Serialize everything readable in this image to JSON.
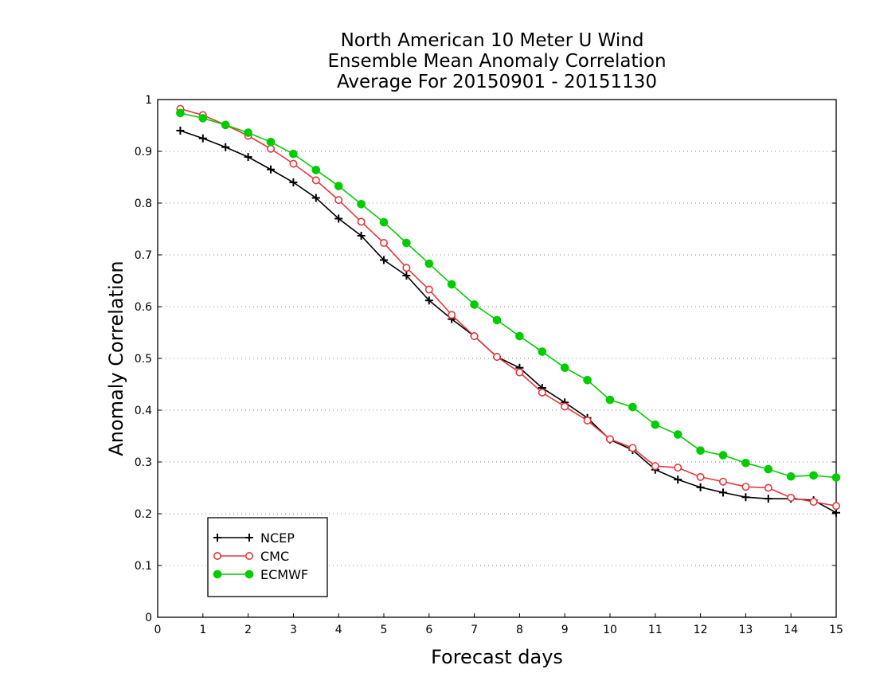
{
  "chart_data": {
    "type": "line",
    "title": [
      "North American 10 Meter U Wind",
      "Ensemble Mean Anomaly Correlation",
      "Average For 20150901 - 20151130"
    ],
    "xlabel": "Forecast days",
    "ylabel": "Anomaly Correlation",
    "xlim": [
      0,
      15
    ],
    "ylim": [
      0,
      1
    ],
    "xticks": [
      0,
      1,
      2,
      3,
      4,
      5,
      6,
      7,
      8,
      9,
      10,
      11,
      12,
      13,
      14,
      15
    ],
    "yticks": [
      0,
      0.1,
      0.2,
      0.3,
      0.4,
      0.5,
      0.6,
      0.7,
      0.8,
      0.9,
      1
    ],
    "ytick_labels": [
      "0",
      "0.1",
      "0.2",
      "0.3",
      "0.4",
      "0.5",
      "0.6",
      "0.7",
      "0.8",
      "0.9",
      "1"
    ],
    "grid": "horizontal dotted",
    "legend_position": "bottom-left",
    "x": [
      0.5,
      1,
      1.5,
      2,
      2.5,
      3,
      3.5,
      4,
      4.5,
      5,
      5.5,
      6,
      6.5,
      7,
      7.5,
      8,
      8.5,
      9,
      9.5,
      10,
      10.5,
      11,
      11.5,
      12,
      12.5,
      13,
      13.5,
      14,
      14.5,
      15
    ],
    "series": [
      {
        "name": "NCEP",
        "color": "#000000",
        "marker": "plus",
        "values": [
          0.94,
          0.925,
          0.908,
          0.889,
          0.865,
          0.84,
          0.81,
          0.77,
          0.737,
          0.69,
          0.66,
          0.612,
          0.576,
          0.543,
          0.503,
          0.482,
          0.443,
          0.415,
          0.385,
          0.343,
          0.323,
          0.285,
          0.266,
          0.251,
          0.241,
          0.232,
          0.229,
          0.229,
          0.226,
          0.202
        ]
      },
      {
        "name": "CMC",
        "color": "#e8363c",
        "marker": "open-circle",
        "values": [
          0.982,
          0.97,
          0.951,
          0.93,
          0.905,
          0.876,
          0.844,
          0.806,
          0.764,
          0.723,
          0.675,
          0.633,
          0.584,
          0.543,
          0.503,
          0.473,
          0.434,
          0.407,
          0.38,
          0.344,
          0.327,
          0.292,
          0.289,
          0.271,
          0.262,
          0.252,
          0.25,
          0.231,
          0.223,
          0.215
        ]
      },
      {
        "name": "ECMWF",
        "color": "#00cc00",
        "marker": "filled-circle",
        "values": [
          0.974,
          0.964,
          0.951,
          0.936,
          0.918,
          0.895,
          0.864,
          0.833,
          0.798,
          0.763,
          0.723,
          0.683,
          0.643,
          0.604,
          0.574,
          0.543,
          0.513,
          0.482,
          0.458,
          0.42,
          0.406,
          0.372,
          0.353,
          0.322,
          0.313,
          0.298,
          0.286,
          0.272,
          0.274,
          0.27
        ]
      }
    ]
  }
}
